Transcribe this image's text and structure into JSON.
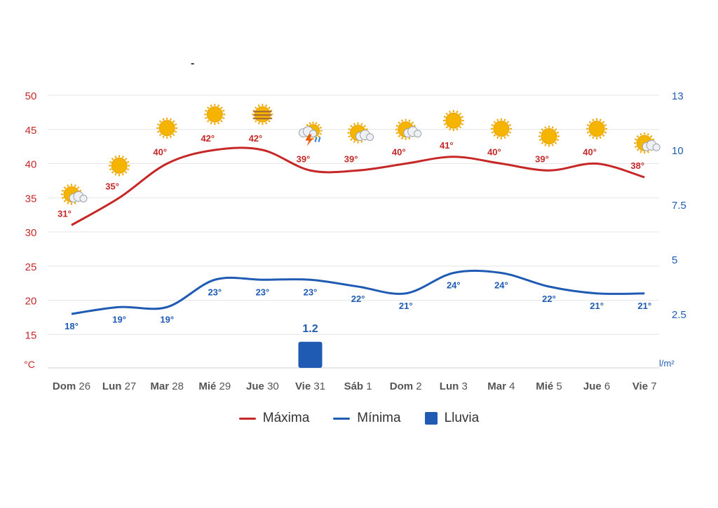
{
  "title": "-",
  "colors": {
    "max": "#c62828",
    "min": "#1f5bb3",
    "rain": "#1f5bb3",
    "grid": "#e6e6e6",
    "xlabel": "#555555",
    "sun": "#f5b400"
  },
  "chart_data": {
    "type": "line",
    "categories": [
      "Dom 26",
      "Lun 27",
      "Mar 28",
      "Mié 29",
      "Jue 30",
      "Vie 31",
      "Sáb 1",
      "Dom 2",
      "Lun 3",
      "Mar 4",
      "Mié 5",
      "Jue 6",
      "Vie 7"
    ],
    "series": [
      {
        "name": "Máxima",
        "axis": "left",
        "values": [
          31,
          35,
          40,
          42,
          42,
          39,
          39,
          40,
          41,
          40,
          39,
          40,
          38
        ],
        "labels": [
          "31°",
          "35°",
          "40°",
          "42°",
          "42°",
          "39°",
          "39°",
          "40°",
          "41°",
          "40°",
          "39°",
          "40°",
          "38°"
        ]
      },
      {
        "name": "Mínima",
        "axis": "left",
        "values": [
          18,
          19,
          19,
          23,
          23,
          23,
          22,
          21,
          24,
          24,
          22,
          21,
          21
        ],
        "labels": [
          "18°",
          "19°",
          "19°",
          "23°",
          "23°",
          "23°",
          "22°",
          "21°",
          "24°",
          "24°",
          "22°",
          "21°",
          "21°"
        ]
      },
      {
        "name": "Lluvia",
        "type": "bar",
        "axis": "right",
        "values": [
          0,
          0,
          0,
          0,
          0,
          1.2,
          0,
          0,
          0,
          0,
          0,
          0,
          0
        ],
        "labels": [
          "",
          "",
          "",
          "",
          "",
          "1.2",
          "",
          "",
          "",
          "",
          "",
          "",
          ""
        ]
      }
    ],
    "left_axis": {
      "unit": "°C",
      "ticks": [
        50,
        45,
        40,
        35,
        30,
        25,
        20,
        15
      ]
    },
    "right_axis": {
      "unit": "l/m²",
      "ticks": [
        "13",
        "10",
        "7.5",
        "5",
        "2.5"
      ]
    },
    "icons": [
      "sun-cloud-icon",
      "sun-icon",
      "sun-icon",
      "sun-icon",
      "sun-fog-icon",
      "storm-icon",
      "sun-cloud-icon",
      "sun-cloud-icon",
      "sun-icon",
      "sun-icon",
      "sun-icon",
      "sun-icon",
      "sun-cloud-icon"
    ],
    "icon_temps": [
      35.5,
      39.7,
      45.2,
      47.2,
      47.2,
      44.5,
      44.5,
      45.0,
      46.3,
      45.1,
      44.0,
      45.1,
      43.0
    ],
    "legend": [
      "Máxima",
      "Mínima",
      "Lluvia"
    ],
    "grid": true
  }
}
